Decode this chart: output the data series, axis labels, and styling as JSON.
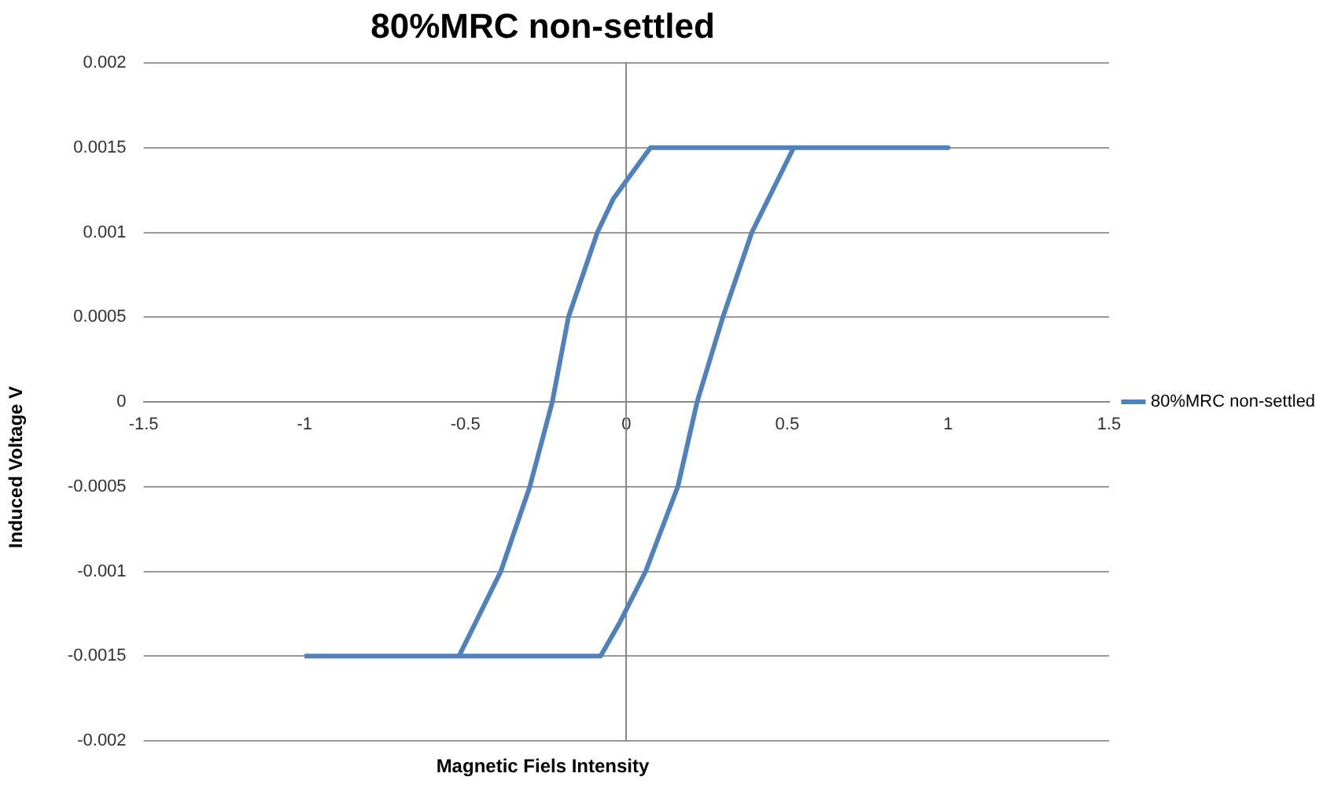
{
  "chart_data": {
    "type": "line",
    "title": "80%MRC non-settled",
    "xlabel": "Magnetic Fiels Intensity",
    "ylabel": "Induced Voltage V",
    "xlim": [
      -1.5,
      1.5
    ],
    "xticks": [
      -1.5,
      -1,
      -0.5,
      0,
      0.5,
      1,
      1.5
    ],
    "ylim": [
      -0.002,
      0.002
    ],
    "yticks": [
      -0.002,
      -0.0015,
      -0.001,
      -0.0005,
      0,
      0.0005,
      0.001,
      0.0015,
      0.002
    ],
    "grid": "y",
    "legend": "right",
    "marker": "none",
    "line_style": "solid",
    "series": [
      {
        "name": "80%MRC non-settled",
        "color": "#4f81bd",
        "x": [
          -1,
          -0.52,
          -0.39,
          -0.3,
          -0.23,
          -0.18,
          -0.09,
          -0.04,
          0.075,
          1,
          0.52,
          0.39,
          0.3,
          0.22,
          0.16,
          0.06,
          -0.02,
          -0.08,
          -0.52
        ],
        "values": [
          -0.0015,
          -0.0015,
          -0.001,
          -0.0005,
          0,
          0.0005,
          0.001,
          0.0012,
          0.0015,
          0.0015,
          0.0015,
          0.001,
          0.0005,
          0,
          -0.0005,
          -0.001,
          -0.0013,
          -0.0015,
          -0.0015
        ]
      }
    ]
  }
}
